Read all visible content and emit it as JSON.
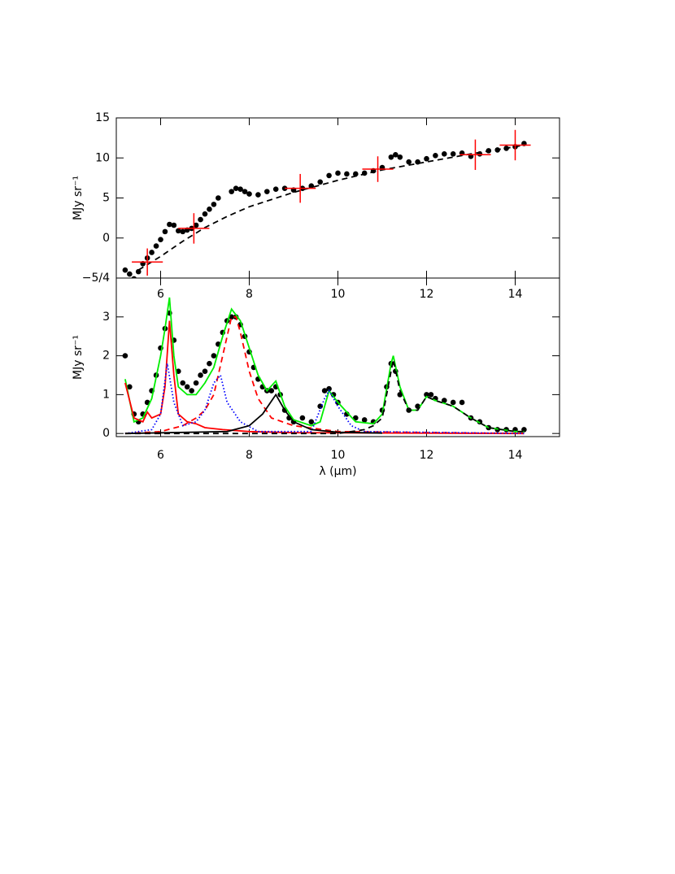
{
  "chart_data": [
    {
      "type": "line",
      "ylabel": "MJy sr⁻¹",
      "xlim": [
        5,
        15
      ],
      "ylim": [
        -5,
        15
      ],
      "xticks": [
        6,
        8,
        10,
        12,
        14
      ],
      "yticks": [
        {
          "value": -5,
          "label": "−5/4"
        },
        0,
        5,
        10,
        15
      ],
      "series": [
        {
          "style": "dots",
          "color": "#000000",
          "x": [
            5.2,
            5.3,
            5.4,
            5.5,
            5.6,
            5.7,
            5.8,
            5.9,
            6.0,
            6.1,
            6.2,
            6.3,
            6.4,
            6.5,
            6.6,
            6.7,
            6.8,
            6.9,
            7.0,
            7.1,
            7.2,
            7.3,
            7.6,
            7.7,
            7.8,
            7.9,
            8.0,
            8.2,
            8.4,
            8.6,
            8.8,
            9.0,
            9.2,
            9.4,
            9.6,
            9.8,
            10.0,
            10.2,
            10.4,
            10.6,
            10.8,
            11.0,
            11.2,
            11.3,
            11.4,
            11.6,
            11.8,
            12.0,
            12.2,
            12.4,
            12.6,
            12.8,
            13.0,
            13.2,
            13.4,
            13.6,
            13.8,
            14.0,
            14.2
          ],
          "values": [
            -4,
            -4.5,
            -5.1,
            -4.2,
            -3.2,
            -2.5,
            -1.8,
            -1,
            -0.2,
            0.8,
            1.7,
            1.6,
            0.9,
            0.8,
            1,
            1.2,
            1.6,
            2.3,
            3,
            3.6,
            4.2,
            5,
            5.8,
            6.2,
            6.1,
            5.8,
            5.5,
            5.4,
            5.8,
            6.1,
            6.2,
            6.0,
            6.2,
            6.5,
            7.0,
            7.8,
            8.1,
            8.0,
            8.0,
            8.1,
            8.4,
            8.8,
            10.1,
            10.4,
            10.1,
            9.5,
            9.5,
            9.9,
            10.3,
            10.5,
            10.5,
            10.6,
            10.2,
            10.5,
            10.9,
            11.0,
            11.2,
            11.4,
            11.8
          ]
        },
        {
          "style": "dashed",
          "color": "#000000",
          "x": [
            5.5,
            6,
            6.5,
            7,
            7.5,
            8,
            9,
            10,
            11,
            12,
            13,
            14,
            14.2
          ],
          "values": [
            -4,
            -2.3,
            -0.4,
            1.3,
            2.7,
            3.9,
            5.7,
            7.2,
            8.5,
            9.5,
            10.5,
            11.4,
            11.6
          ]
        },
        {
          "style": "cross",
          "color": "#ff0000",
          "x": [
            5.7,
            6.75,
            9.15,
            10.9,
            13.1,
            14.0
          ],
          "values": [
            -3,
            1.2,
            6.2,
            8.6,
            10.4,
            11.6
          ],
          "xerr": [
            0.35,
            0.35,
            0.35,
            0.35,
            0.35,
            0.35
          ],
          "yerr": [
            1.7,
            1.9,
            1.8,
            1.6,
            1.9,
            1.9
          ]
        }
      ]
    },
    {
      "type": "line",
      "ylabel": "MJy sr⁻¹",
      "xlabel": "λ (μm)",
      "xlim": [
        5,
        15
      ],
      "ylim": [
        -0.08,
        4
      ],
      "xticks": [
        6,
        8,
        10,
        12,
        14
      ],
      "yticks": [
        0,
        1,
        2,
        3
      ],
      "series": [
        {
          "style": "dots",
          "color": "#000000",
          "x": [
            5.2,
            5.3,
            5.4,
            5.5,
            5.6,
            5.7,
            5.8,
            5.9,
            6.0,
            6.1,
            6.2,
            6.3,
            6.4,
            6.5,
            6.6,
            6.7,
            6.8,
            6.9,
            7.0,
            7.1,
            7.2,
            7.3,
            7.4,
            7.5,
            7.6,
            7.7,
            7.8,
            7.9,
            8.0,
            8.1,
            8.2,
            8.3,
            8.4,
            8.5,
            8.6,
            8.7,
            8.8,
            8.9,
            9.0,
            9.2,
            9.4,
            9.6,
            9.7,
            9.8,
            9.9,
            10.0,
            10.2,
            10.4,
            10.6,
            10.8,
            11.0,
            11.1,
            11.2,
            11.3,
            11.4,
            11.6,
            11.8,
            12.0,
            12.1,
            12.2,
            12.4,
            12.6,
            12.8,
            13.0,
            13.2,
            13.4,
            13.6,
            13.8,
            14.0,
            14.2
          ],
          "values": [
            2.0,
            1.2,
            0.5,
            0.3,
            0.5,
            0.8,
            1.1,
            1.5,
            2.2,
            2.7,
            3.1,
            2.4,
            1.6,
            1.3,
            1.2,
            1.1,
            1.3,
            1.5,
            1.6,
            1.8,
            2.0,
            2.3,
            2.6,
            2.9,
            3.0,
            3.0,
            2.8,
            2.5,
            2.1,
            1.7,
            1.4,
            1.2,
            1.1,
            1.1,
            1.2,
            1.0,
            0.6,
            0.4,
            0.3,
            0.4,
            0.3,
            0.7,
            1.1,
            1.15,
            1.0,
            0.8,
            0.5,
            0.4,
            0.35,
            0.3,
            0.6,
            1.2,
            1.8,
            1.6,
            1.0,
            0.6,
            0.7,
            1.0,
            1.0,
            0.9,
            0.85,
            0.8,
            0.8,
            0.4,
            0.3,
            0.15,
            0.1,
            0.1,
            0.1,
            0.1
          ]
        },
        {
          "style": "line",
          "color": "#00ee00",
          "x": [
            5.2,
            5.4,
            5.6,
            5.8,
            6.0,
            6.1,
            6.2,
            6.3,
            6.4,
            6.6,
            6.8,
            7.0,
            7.2,
            7.4,
            7.6,
            7.8,
            8.0,
            8.2,
            8.4,
            8.6,
            8.8,
            9.0,
            9.4,
            9.6,
            9.8,
            10.0,
            10.4,
            10.8,
            11.0,
            11.2,
            11.25,
            11.4,
            11.6,
            11.8,
            12.0,
            12.2,
            12.6,
            13.0,
            13.4,
            14.0,
            14.2
          ],
          "values": [
            1.4,
            0.3,
            0.4,
            0.9,
            2.0,
            2.7,
            3.5,
            2.0,
            1.2,
            1.0,
            1.0,
            1.3,
            1.7,
            2.5,
            3.2,
            2.9,
            2.2,
            1.5,
            1.1,
            1.35,
            0.7,
            0.35,
            0.2,
            0.3,
            1.1,
            0.8,
            0.3,
            0.25,
            0.5,
            1.8,
            2.0,
            1.2,
            0.6,
            0.6,
            0.95,
            0.85,
            0.7,
            0.4,
            0.15,
            0.05,
            0.05
          ]
        },
        {
          "style": "line",
          "color": "#ff0000",
          "x": [
            5.2,
            5.4,
            5.6,
            5.7,
            5.8,
            6.0,
            6.1,
            6.2,
            6.3,
            6.4,
            6.6,
            6.8,
            7.0,
            7.4,
            8,
            9,
            14.2
          ],
          "values": [
            1.3,
            0.4,
            0.3,
            0.55,
            0.4,
            0.5,
            1.2,
            2.9,
            1.5,
            0.5,
            0.3,
            0.25,
            0.15,
            0.1,
            0.05,
            0.02,
            0
          ]
        },
        {
          "style": "dashed",
          "color": "#ff0000",
          "x": [
            5.2,
            6.0,
            6.5,
            6.8,
            7.0,
            7.2,
            7.4,
            7.6,
            7.7,
            7.8,
            8.0,
            8.2,
            8.5,
            9,
            10,
            14.2
          ],
          "values": [
            0,
            0.05,
            0.2,
            0.4,
            0.6,
            1.0,
            2.0,
            3.0,
            3.0,
            2.6,
            1.6,
            0.9,
            0.4,
            0.2,
            0.05,
            0
          ]
        },
        {
          "style": "dotted",
          "color": "#0000ff",
          "x": [
            5.2,
            5.8,
            6.0,
            6.15,
            6.3,
            6.5,
            6.8,
            7.0,
            7.2,
            7.35,
            7.5,
            7.8,
            8.2,
            9.4,
            9.7,
            9.8,
            10.0,
            10.3,
            10.6,
            14.2
          ],
          "values": [
            0,
            0.1,
            0.5,
            1.8,
            0.8,
            0.2,
            0.3,
            0.6,
            1.3,
            1.5,
            0.8,
            0.3,
            0.05,
            0.05,
            0.9,
            1.1,
            0.7,
            0.2,
            0.05,
            0
          ]
        },
        {
          "style": "line",
          "color": "#000000",
          "x": [
            5.2,
            7.5,
            8.0,
            8.3,
            8.6,
            8.8,
            9.0,
            9.4,
            10,
            11
          ],
          "values": [
            0,
            0.05,
            0.2,
            0.5,
            1.0,
            0.6,
            0.3,
            0.1,
            0.03,
            0.01
          ]
        },
        {
          "style": "dashed",
          "color": "#000000",
          "x": [
            5.2,
            10.0,
            10.6,
            10.8,
            11.0,
            11.1,
            11.25,
            11.4,
            11.6,
            11.8,
            12.0,
            12.2,
            12.6,
            13.0,
            13.4,
            14.0,
            14.2
          ],
          "values": [
            0,
            0,
            0.1,
            0.2,
            0.4,
            1.0,
            1.9,
            1.1,
            0.6,
            0.6,
            0.95,
            0.85,
            0.7,
            0.4,
            0.15,
            0.05,
            0.05
          ]
        }
      ]
    }
  ]
}
